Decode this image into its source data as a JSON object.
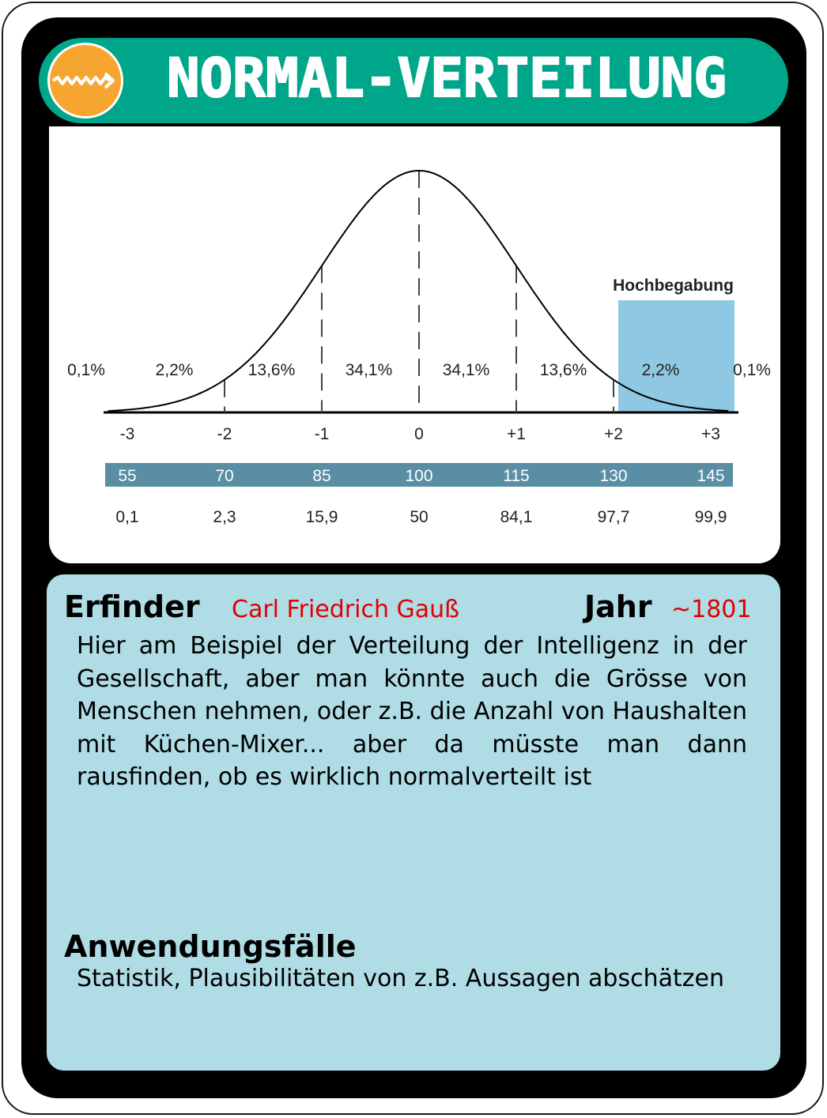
{
  "card": {
    "title": "NORMAL-VERTEILUNG",
    "logo_icon": "zigzag-arrow-icon"
  },
  "colors": {
    "header_bg": "#00a68a",
    "logo_bg": "#f7a531",
    "info_bg": "#b0dce6",
    "accent_red": "#e00000",
    "highlight": "#8fc8e2",
    "scale_bar": "#5a8ea4"
  },
  "chart_data": {
    "type": "area",
    "curve": "normal distribution (bell curve)",
    "x_ticks": [
      "-3",
      "-2",
      "-1",
      "0",
      "+1",
      "+2",
      "+3"
    ],
    "x": [
      -3,
      -2,
      -1,
      0,
      1,
      2,
      3
    ],
    "segment_labels": [
      "0,1%",
      "2,2%",
      "13,6%",
      "34,1%",
      "34,1%",
      "13,6%",
      "2,2%",
      "0,1%"
    ],
    "segment_values": [
      0.1,
      2.2,
      13.6,
      34.1,
      34.1,
      13.6,
      2.2,
      0.1
    ],
    "highlight_label": "Hochbegabung",
    "highlight_range": [
      2,
      3
    ],
    "iq_scale": [
      "55",
      "70",
      "85",
      "100",
      "115",
      "130",
      "145"
    ],
    "percentiles": [
      "0,1",
      "2,3",
      "15,9",
      "50",
      "84,1",
      "97,7",
      "99,9"
    ]
  },
  "info": {
    "inventor_label": "Erfinder",
    "inventor_value": "Carl Friedrich Gauß",
    "year_label": "Jahr",
    "year_value": "~1801",
    "description": "Hier am Beispiel der Verteilung der Intelligenz in der Gesellschaft, aber man könnte auch die Grösse von Menschen nehmen, oder z.B. die Anzahl von Haushalten mit Küchen-Mixer... aber da müsste man dann rausfinden, ob es wirklich normalverteilt ist",
    "applications_label": "Anwendungsfälle",
    "applications_value": "Statistik, Plausibilitäten von z.B. Aussagen abschätzen"
  }
}
